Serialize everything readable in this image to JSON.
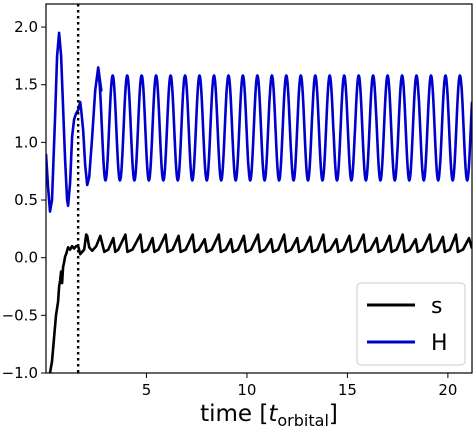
{
  "chart_data": {
    "type": "line",
    "xlabel_main": "time [",
    "xlabel_var": "t",
    "xlabel_sub": "orbital",
    "xlabel_close": "]",
    "ylabel": "",
    "xlim": [
      0,
      21.2
    ],
    "ylim": [
      -1.0,
      2.2
    ],
    "x_ticks": [
      5,
      10,
      15,
      20
    ],
    "y_ticks": [
      -1.0,
      -0.5,
      0.0,
      0.5,
      1.0,
      1.5,
      2.0
    ],
    "x_tick_labels": [
      "5",
      "10",
      "15",
      "20"
    ],
    "y_tick_labels": [
      "−1.0",
      "−0.5",
      "0.0",
      "0.5",
      "1.0",
      "1.5",
      "2.0"
    ],
    "vline": {
      "x": 1.6,
      "style": "dotted",
      "color": "#000000"
    },
    "legend_position": "lower-right",
    "series": [
      {
        "name": "s",
        "color": "#000000",
        "points": [
          [
            0.2,
            -1.0
          ],
          [
            0.3,
            -0.9
          ],
          [
            0.4,
            -0.7
          ],
          [
            0.5,
            -0.5
          ],
          [
            0.6,
            -0.38
          ],
          [
            0.65,
            -0.25
          ],
          [
            0.7,
            -0.2
          ],
          [
            0.75,
            -0.12
          ],
          [
            0.8,
            -0.22
          ],
          [
            0.85,
            -0.08
          ],
          [
            0.9,
            -0.04
          ],
          [
            0.95,
            0.01
          ],
          [
            1.0,
            0.03
          ],
          [
            1.05,
            0.06
          ],
          [
            1.1,
            0.09
          ],
          [
            1.2,
            0.07
          ],
          [
            1.3,
            0.1
          ],
          [
            1.4,
            0.08
          ],
          [
            1.5,
            0.1
          ],
          [
            1.6,
            0.1
          ],
          [
            1.7,
            0.03
          ],
          [
            1.8,
            0.05
          ],
          [
            1.9,
            0.07
          ],
          [
            2.0,
            0.2
          ],
          [
            2.05,
            0.19
          ],
          [
            2.15,
            0.09
          ],
          [
            2.3,
            0.06
          ],
          [
            2.5,
            0.1
          ],
          [
            2.7,
            0.19
          ],
          [
            2.9,
            0.05
          ],
          [
            3.1,
            0.07
          ],
          [
            3.35,
            0.17
          ],
          [
            3.45,
            0.05
          ],
          [
            3.6,
            0.07
          ],
          [
            3.95,
            0.2
          ],
          [
            4.05,
            0.05
          ],
          [
            4.3,
            0.07
          ],
          [
            4.7,
            0.2
          ],
          [
            4.8,
            0.05
          ],
          [
            5.05,
            0.07
          ],
          [
            5.3,
            0.17
          ],
          [
            5.4,
            0.05
          ],
          [
            5.6,
            0.07
          ],
          [
            5.95,
            0.2
          ],
          [
            6.05,
            0.05
          ],
          [
            6.3,
            0.07
          ],
          [
            6.6,
            0.19
          ],
          [
            6.7,
            0.05
          ],
          [
            6.95,
            0.07
          ],
          [
            7.3,
            0.2
          ],
          [
            7.4,
            0.05
          ],
          [
            7.6,
            0.07
          ],
          [
            7.9,
            0.16
          ],
          [
            8.0,
            0.05
          ],
          [
            8.25,
            0.07
          ],
          [
            8.6,
            0.2
          ],
          [
            8.7,
            0.05
          ],
          [
            8.95,
            0.07
          ],
          [
            9.2,
            0.16
          ],
          [
            9.3,
            0.05
          ],
          [
            9.55,
            0.07
          ],
          [
            9.85,
            0.19
          ],
          [
            9.95,
            0.05
          ],
          [
            10.2,
            0.07
          ],
          [
            10.55,
            0.2
          ],
          [
            10.65,
            0.05
          ],
          [
            10.9,
            0.07
          ],
          [
            11.2,
            0.16
          ],
          [
            11.3,
            0.05
          ],
          [
            11.55,
            0.07
          ],
          [
            11.85,
            0.2
          ],
          [
            11.95,
            0.05
          ],
          [
            12.2,
            0.07
          ],
          [
            12.5,
            0.17
          ],
          [
            12.6,
            0.05
          ],
          [
            12.85,
            0.07
          ],
          [
            13.15,
            0.18
          ],
          [
            13.25,
            0.05
          ],
          [
            13.5,
            0.07
          ],
          [
            13.8,
            0.2
          ],
          [
            13.9,
            0.05
          ],
          [
            14.15,
            0.07
          ],
          [
            14.45,
            0.16
          ],
          [
            14.55,
            0.05
          ],
          [
            14.8,
            0.07
          ],
          [
            15.1,
            0.19
          ],
          [
            15.2,
            0.05
          ],
          [
            15.45,
            0.07
          ],
          [
            15.8,
            0.2
          ],
          [
            15.9,
            0.05
          ],
          [
            16.15,
            0.07
          ],
          [
            16.45,
            0.17
          ],
          [
            16.55,
            0.05
          ],
          [
            16.8,
            0.07
          ],
          [
            17.1,
            0.19
          ],
          [
            17.2,
            0.05
          ],
          [
            17.45,
            0.07
          ],
          [
            17.75,
            0.2
          ],
          [
            17.85,
            0.05
          ],
          [
            18.1,
            0.07
          ],
          [
            18.4,
            0.16
          ],
          [
            18.5,
            0.05
          ],
          [
            18.75,
            0.07
          ],
          [
            19.1,
            0.2
          ],
          [
            19.2,
            0.05
          ],
          [
            19.45,
            0.07
          ],
          [
            19.75,
            0.18
          ],
          [
            19.85,
            0.05
          ],
          [
            20.1,
            0.07
          ],
          [
            20.4,
            0.2
          ],
          [
            20.5,
            0.05
          ],
          [
            20.75,
            0.07
          ],
          [
            21.05,
            0.17
          ],
          [
            21.2,
            0.08
          ]
        ]
      },
      {
        "name": "H",
        "color": "#0000cc",
        "points": [
          [
            0.0,
            0.9
          ],
          [
            0.1,
            0.62
          ],
          [
            0.2,
            0.4
          ],
          [
            0.3,
            0.5
          ],
          [
            0.45,
            1.2
          ],
          [
            0.55,
            1.75
          ],
          [
            0.65,
            1.95
          ],
          [
            0.75,
            1.75
          ],
          [
            0.85,
            1.3
          ],
          [
            0.95,
            0.85
          ],
          [
            1.05,
            0.5
          ],
          [
            1.1,
            0.45
          ],
          [
            1.2,
            0.65
          ],
          [
            1.3,
            1.05
          ],
          [
            1.4,
            1.2
          ],
          [
            1.5,
            1.25
          ],
          [
            1.6,
            1.28
          ],
          [
            1.7,
            1.35
          ],
          [
            1.75,
            1.28
          ],
          [
            1.85,
            1.1
          ],
          [
            1.95,
            0.8
          ],
          [
            2.05,
            0.63
          ],
          [
            2.15,
            0.7
          ],
          [
            2.3,
            1.05
          ],
          [
            2.45,
            1.45
          ],
          [
            2.6,
            1.65
          ],
          [
            2.75,
            1.45
          ]
        ],
        "oscillation": {
          "x_start": 2.6,
          "x_end": 21.2,
          "period": 0.72,
          "y_min": 0.67,
          "y_max": 1.58
        }
      }
    ]
  }
}
